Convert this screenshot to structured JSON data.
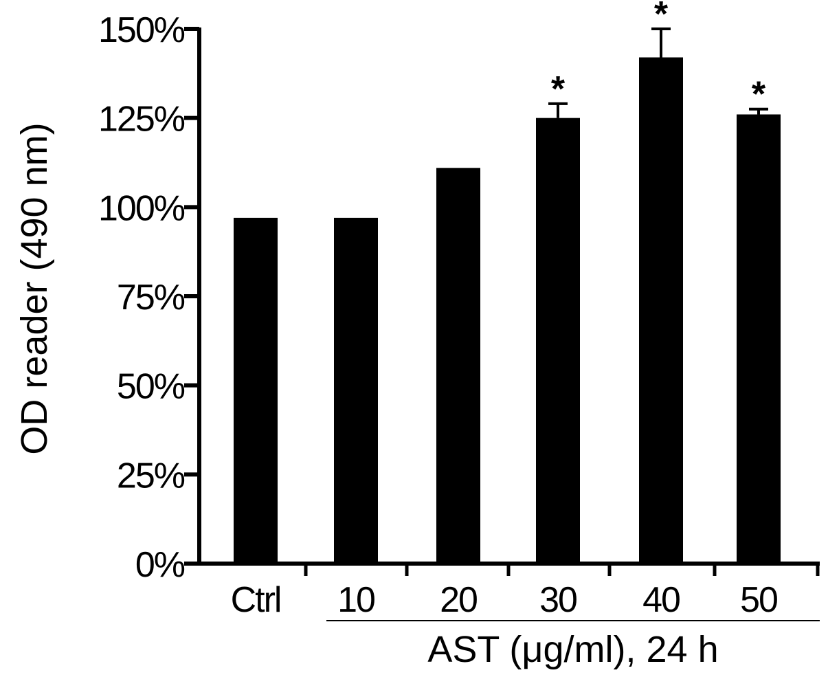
{
  "chart_data": {
    "type": "bar",
    "title": "",
    "ylabel": "OD reader (490 nm)",
    "xlabel": "AST (μg/ml), 24 h",
    "categories": [
      "Ctrl",
      "10",
      "20",
      "30",
      "40",
      "50"
    ],
    "values": [
      97,
      97,
      111,
      125,
      142,
      126
    ],
    "errors": [
      0,
      0,
      0,
      4,
      8,
      1.5
    ],
    "significance": [
      "",
      "",
      "",
      "*",
      "*",
      "*"
    ],
    "ylim": [
      0,
      150
    ],
    "yticks": [
      0,
      25,
      50,
      75,
      100,
      125,
      150
    ],
    "ytick_labels": [
      "0%",
      "25%",
      "50%",
      "75%",
      "100%",
      "125%",
      "150%"
    ],
    "bar_color": "#000000",
    "grid": false,
    "legend": "none"
  }
}
